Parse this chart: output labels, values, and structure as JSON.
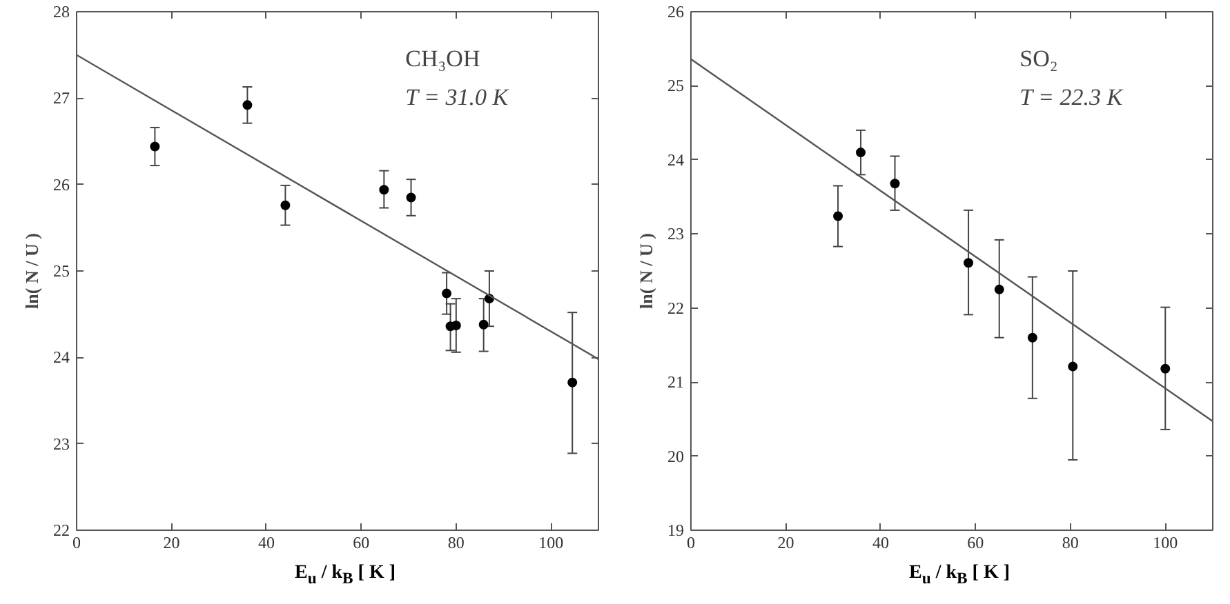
{
  "chart_data": [
    {
      "type": "scatter",
      "xlabel": "E$_{u}$ / k$_{B}$ [ K ]",
      "ylabel": "ln( N / U )",
      "xlim": [
        0,
        110
      ],
      "ylim": [
        22,
        28
      ],
      "xticks": [
        0,
        20,
        40,
        60,
        80,
        100
      ],
      "yticks": [
        22,
        23,
        24,
        25,
        26,
        27,
        28
      ],
      "grid": false,
      "annotations": [
        "CH₃OH",
        "T = 31.0 K"
      ],
      "series": [
        {
          "marker": "circle",
          "color": "#000000",
          "x": [
            16.5,
            36,
            44,
            64.8,
            70.5,
            78,
            78.8,
            80,
            85.8,
            87,
            104.5
          ],
          "values": [
            26.44,
            26.92,
            25.76,
            25.94,
            25.85,
            24.74,
            24.36,
            24.37,
            24.38,
            24.68,
            23.71
          ],
          "errors": [
            [
              26.22,
              26.66
            ],
            [
              26.71,
              27.13
            ],
            [
              25.53,
              25.99
            ],
            [
              25.73,
              26.16
            ],
            [
              25.64,
              26.06
            ],
            [
              24.5,
              24.98
            ],
            [
              24.08,
              24.62
            ],
            [
              24.06,
              24.68
            ],
            [
              24.07,
              24.68
            ],
            [
              24.36,
              25.0
            ],
            [
              22.89,
              24.52
            ]
          ]
        },
        {
          "type": "line",
          "color": "#555555",
          "line_style": "solid",
          "x": [
            0,
            110
          ],
          "values": [
            27.5,
            23.98
          ]
        }
      ]
    },
    {
      "type": "scatter",
      "xlabel": "E$_{u}$ / k$_{B}$ [ K ]",
      "ylabel": "ln( N / U )",
      "xlim": [
        0,
        110
      ],
      "ylim": [
        19,
        26
      ],
      "xticks": [
        0,
        20,
        40,
        60,
        80,
        100
      ],
      "yticks": [
        19,
        20,
        21,
        22,
        23,
        24,
        25,
        26
      ],
      "grid": false,
      "annotations": [
        "SO₂",
        "T = 22.3 K"
      ],
      "series": [
        {
          "marker": "circle",
          "color": "#000000",
          "x": [
            31,
            35.8,
            43,
            58.5,
            65,
            72,
            80.5,
            100
          ],
          "values": [
            23.24,
            24.1,
            23.68,
            22.61,
            22.25,
            21.6,
            21.21,
            21.18
          ],
          "errors": [
            [
              22.83,
              23.65
            ],
            [
              23.8,
              24.4
            ],
            [
              23.32,
              24.05
            ],
            [
              21.91,
              23.32
            ],
            [
              21.6,
              22.92
            ],
            [
              20.78,
              22.42
            ],
            [
              19.95,
              22.5
            ],
            [
              20.36,
              22.01
            ]
          ]
        },
        {
          "type": "line",
          "color": "#555555",
          "line_style": "solid",
          "x": [
            0,
            110
          ],
          "values": [
            25.36,
            20.47
          ]
        }
      ]
    }
  ]
}
